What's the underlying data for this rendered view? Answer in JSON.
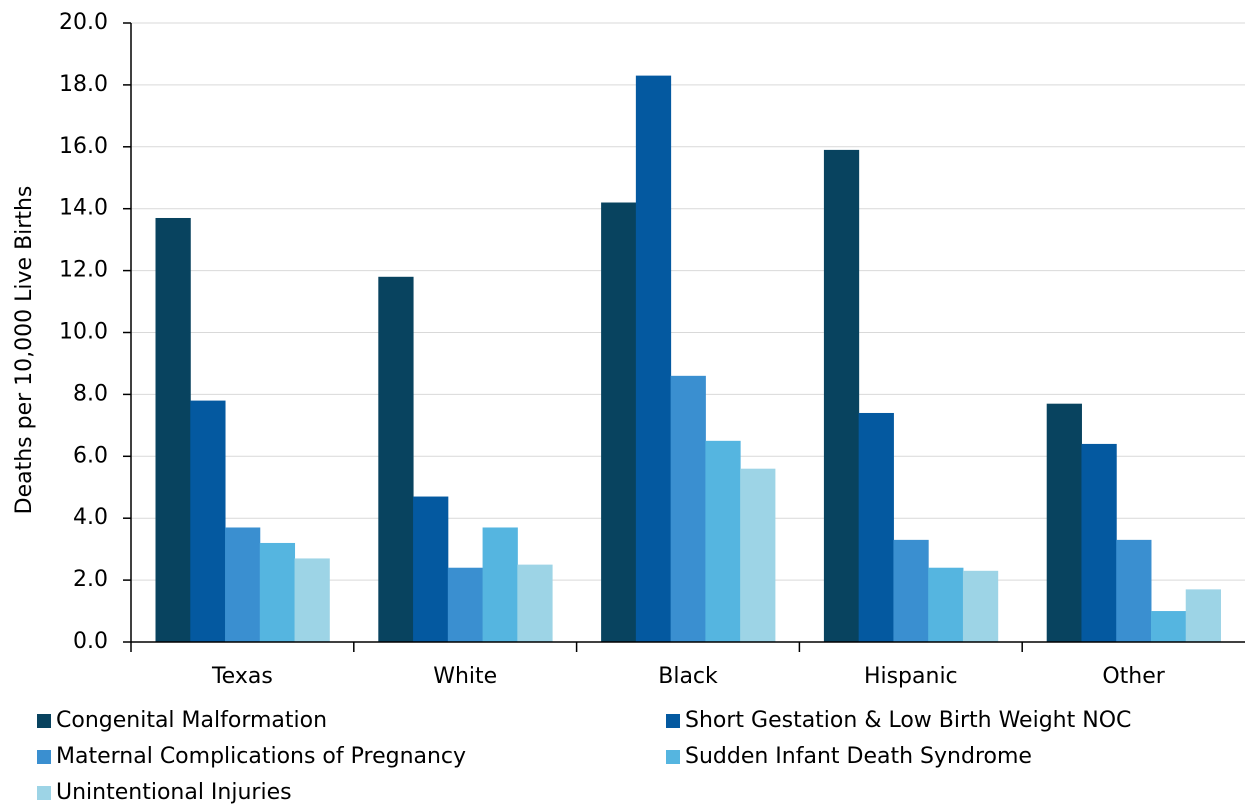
{
  "chart_data": {
    "type": "bar",
    "y_label": "Deaths per 10,000 Live Births",
    "categories": [
      "Texas",
      "White",
      "Black",
      "Hispanic",
      "Other"
    ],
    "series": [
      {
        "name": "Congenital Malformation",
        "color": "#08435f",
        "values": [
          13.7,
          11.8,
          14.2,
          15.9,
          7.7
        ]
      },
      {
        "name": "Short Gestation & Low Birth Weight NOC",
        "color": "#0459a0",
        "values": [
          7.8,
          4.7,
          18.3,
          7.4,
          6.4
        ]
      },
      {
        "name": "Maternal Complications of Pregnancy",
        "color": "#3a8fd0",
        "values": [
          3.7,
          2.4,
          8.6,
          3.3,
          3.3
        ]
      },
      {
        "name": "Sudden Infant Death Syndrome",
        "color": "#55b5e0",
        "values": [
          3.2,
          3.7,
          6.5,
          2.4,
          1.0
        ]
      },
      {
        "name": "Unintentional Injuries",
        "color": "#9dd4e6",
        "values": [
          2.7,
          2.5,
          5.6,
          2.3,
          1.7
        ]
      }
    ],
    "ylim": [
      0,
      20
    ],
    "yticks": [
      {
        "value": 0,
        "label": "0.0"
      },
      {
        "value": 2,
        "label": "2.0"
      },
      {
        "value": 4,
        "label": "4.0"
      },
      {
        "value": 6,
        "label": "6.0"
      },
      {
        "value": 8,
        "label": "8.0"
      },
      {
        "value": 10,
        "label": "10.0"
      },
      {
        "value": 12,
        "label": "12.0"
      },
      {
        "value": 14,
        "label": "14.0"
      },
      {
        "value": 16,
        "label": "16.0"
      },
      {
        "value": 18,
        "label": "18.0"
      },
      {
        "value": 20,
        "label": "20.0"
      }
    ],
    "grid": true,
    "legend": "bottom"
  }
}
